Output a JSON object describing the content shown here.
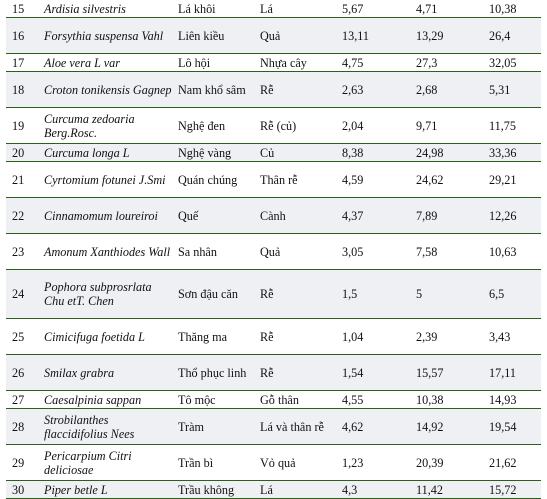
{
  "rows": [
    {
      "no": "15",
      "sci": "Ardisia silvestris",
      "vn": "Lá khôi",
      "part": "Lá",
      "a": "5,67",
      "b": "4,71",
      "c": "10,38"
    },
    {
      "no": "16",
      "sci": "Forsythia suspensa Vahl",
      "vn": "Liên kiều",
      "part": "Quả",
      "a": "13,11",
      "b": "13,29",
      "c": "26,4"
    },
    {
      "no": "17",
      "sci": "Aloe vera L var",
      "vn": "Lô hội",
      "part": "Nhựa cây",
      "a": "4,75",
      "b": "27,3",
      "c": "32,05"
    },
    {
      "no": "18",
      "sci": "Croton tonikensis Gagnep",
      "vn": "Nam khổ sâm",
      "part": "Rễ",
      "a": "2,63",
      "b": "2,68",
      "c": "5,31"
    },
    {
      "no": "19",
      "sci": "Curcuma zedoaria Berg.Rosc.",
      "vn": "Nghệ đen",
      "part": "Rễ (củ)",
      "a": "2,04",
      "b": "9,71",
      "c": "11,75"
    },
    {
      "no": "20",
      "sci": "Curcuma longa L",
      "vn": "Nghệ vàng",
      "part": "Củ",
      "a": "8,38",
      "b": "24,98",
      "c": "33,36"
    },
    {
      "no": "21",
      "sci": "Cyrtomium fotunei J.Smi",
      "vn": "Quán chúng",
      "part": "Thân rễ",
      "a": "4,59",
      "b": "24,62",
      "c": "29,21"
    },
    {
      "no": "22",
      "sci": "Cinnamomum loureiroi",
      "vn": "Quế",
      "part": "Cành",
      "a": "4,37",
      "b": "7,89",
      "c": "12,26"
    },
    {
      "no": "23",
      "sci": "Amonum Xanthiodes Wall",
      "vn": "Sa nhân",
      "part": "Quả",
      "a": "3,05",
      "b": "7,58",
      "c": "10,63"
    },
    {
      "no": "24",
      "sci": "Pophora subprosrlata Chu etT. Chen",
      "vn": "Sơn đậu căn",
      "part": "Rễ",
      "a": "1,5",
      "b": "5",
      "c": "6,5"
    },
    {
      "no": "25",
      "sci": "Cimicifuga foetida L",
      "vn": "Thăng ma",
      "part": "Rễ",
      "a": "1,04",
      "b": "2,39",
      "c": "3,43"
    },
    {
      "no": "26",
      "sci": "Smilax grabra",
      "vn": "Thổ phục linh",
      "part": "Rễ",
      "a": "1,54",
      "b": "15,57",
      "c": "17,11"
    },
    {
      "no": "27",
      "sci": "Caesalpinia sappan",
      "vn": "Tô mộc",
      "part": "Gỗ thân",
      "a": "4,55",
      "b": "10,38",
      "c": "14,93"
    },
    {
      "no": "28",
      "sci": "Strobilanthes flaccidifolius Nees",
      "vn": "Tràm",
      "part": "Lá và thân rễ",
      "a": "4,62",
      "b": "14,92",
      "c": "19,54"
    },
    {
      "no": "29",
      "sci": "Pericarpium Citri deliciosae",
      "vn": "Trần bì",
      "part": "Vỏ quả",
      "a": "1,23",
      "b": "20,39",
      "c": "21,62"
    },
    {
      "no": "30",
      "sci": "Piper betle L",
      "vn": "Trầu không",
      "part": "Lá",
      "a": "4,3",
      "b": "11,42",
      "c": "15,72"
    }
  ]
}
